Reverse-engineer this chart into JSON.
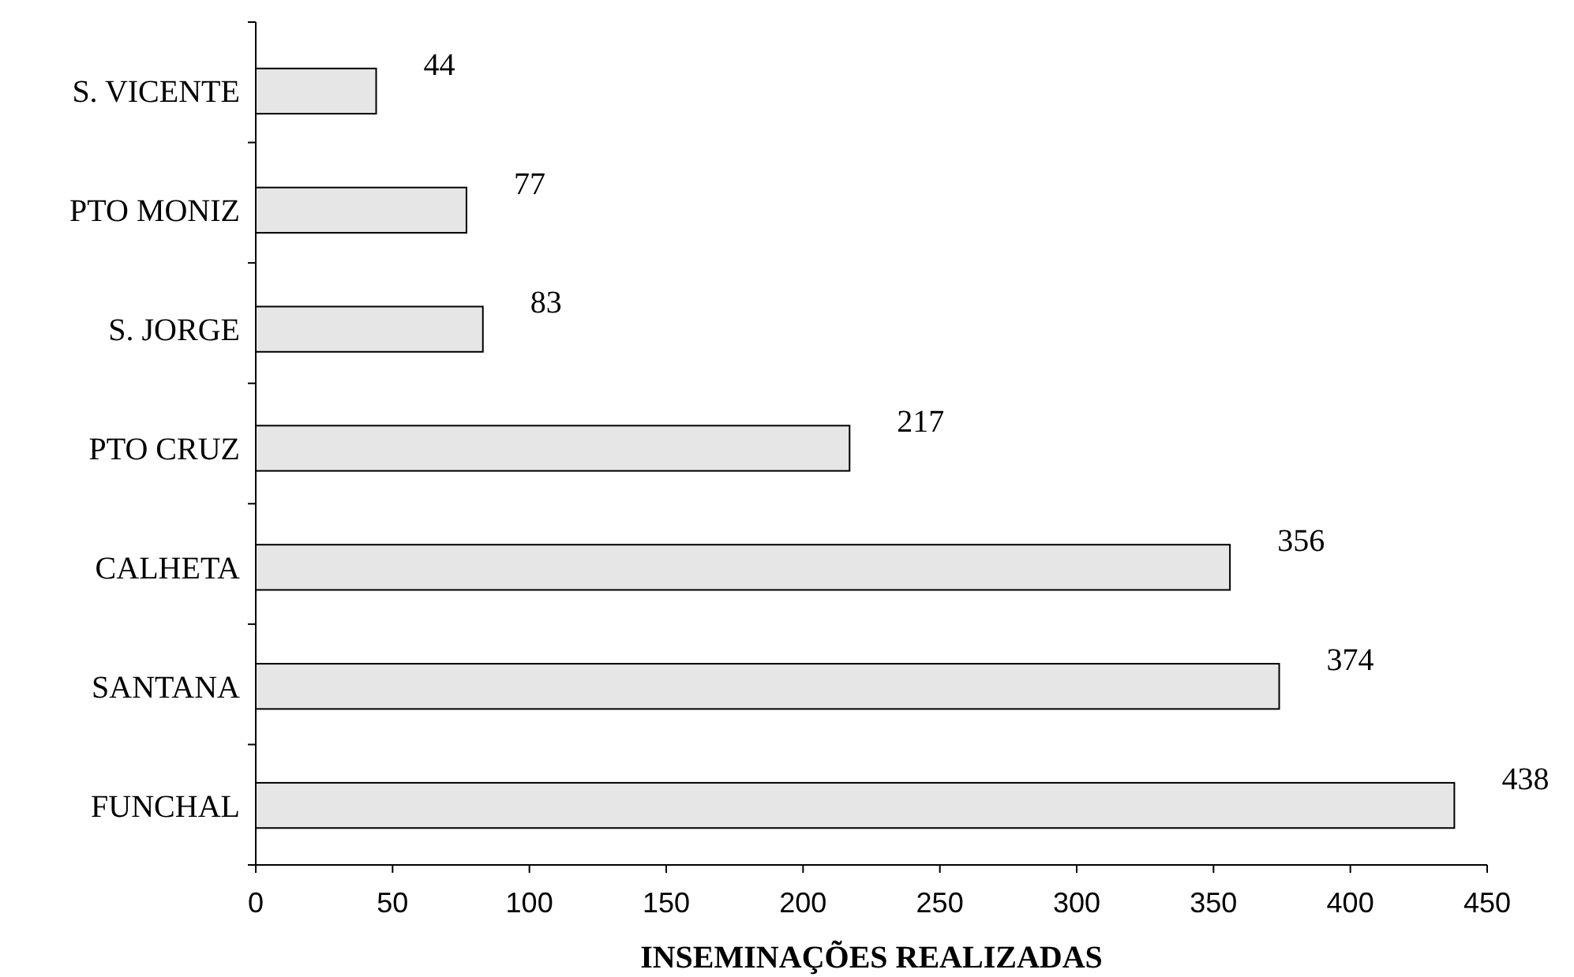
{
  "chart_data": {
    "type": "bar",
    "orientation": "horizontal",
    "xlabel": "INSEMINAÇÕES REALIZADAS",
    "categories": [
      "S. VICENTE",
      "PTO MONIZ",
      "S. JORGE",
      "PTO CRUZ",
      "CALHETA",
      "SANTANA",
      "FUNCHAL"
    ],
    "values": [
      44,
      77,
      83,
      217,
      356,
      374,
      438
    ],
    "color": "#e6e6e6",
    "xlim": [
      0,
      450
    ],
    "xticks": [
      0,
      50,
      100,
      150,
      200,
      250,
      300,
      350,
      400,
      450
    ],
    "data_labels": true
  }
}
